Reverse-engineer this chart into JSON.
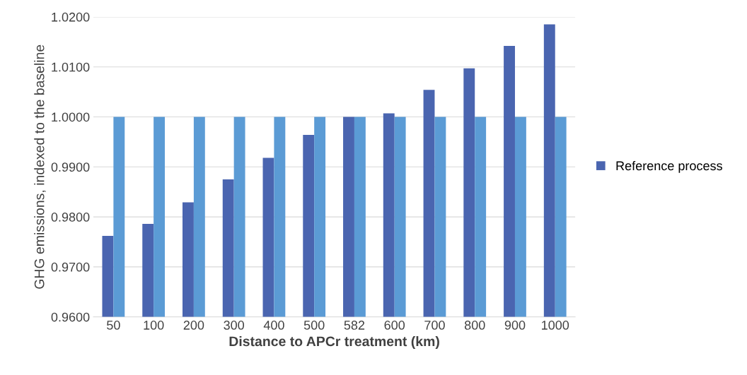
{
  "chart_data": {
    "type": "bar",
    "xlabel": "Distance to APCr treatment (km)",
    "ylabel": "GHG emissions, indexed to the baseline",
    "categories": [
      "50",
      "100",
      "200",
      "300",
      "400",
      "500",
      "582",
      "600",
      "700",
      "800",
      "900",
      "1000"
    ],
    "series": [
      {
        "name": "Reference process",
        "color": "#4a65b0",
        "values": [
          0.9762,
          0.9786,
          0.9829,
          0.9875,
          0.9918,
          0.9964,
          1.0,
          1.0007,
          1.0054,
          1.0097,
          1.0142,
          1.0185
        ]
      },
      {
        "color": "#5b9bd5",
        "values": [
          1.0,
          1.0,
          1.0,
          1.0,
          1.0,
          1.0,
          1.0,
          1.0,
          1.0,
          1.0,
          1.0,
          1.0
        ]
      }
    ],
    "ylim": [
      0.96,
      1.02
    ],
    "yticks": [
      {
        "value": 0.96,
        "label": "0.9600"
      },
      {
        "value": 0.97,
        "label": "0.9700"
      },
      {
        "value": 0.98,
        "label": "0.9800"
      },
      {
        "value": 0.99,
        "label": "0.9900"
      },
      {
        "value": 1.0,
        "label": "1.0000"
      },
      {
        "value": 1.01,
        "label": "1.0100"
      },
      {
        "value": 1.02,
        "label": "1.0200"
      }
    ],
    "grid": "y",
    "legend": "right"
  }
}
